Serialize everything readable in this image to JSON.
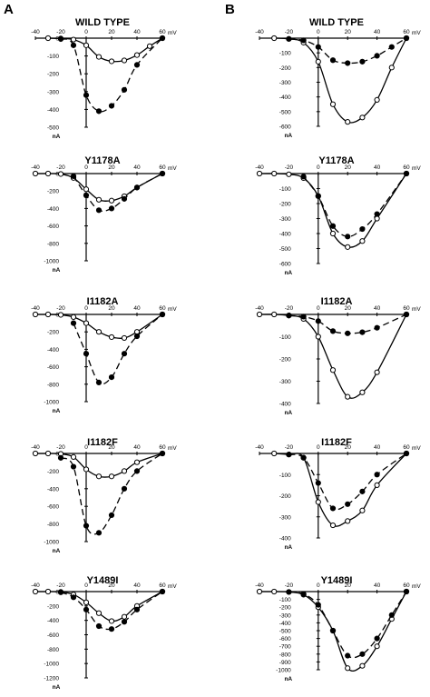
{
  "panel_labels": {
    "left": "A",
    "right": "B"
  },
  "chart_data": [
    {
      "column": "A",
      "type": "line",
      "title": "WILD TYPE",
      "xunit": "mV",
      "yunit": "nA",
      "xlim": [
        -40,
        60
      ],
      "xticks": [
        -40,
        -20,
        0,
        20,
        40,
        60
      ],
      "ylim": [
        -500,
        0
      ],
      "yticks": [
        0,
        -100,
        -200,
        -300,
        -400,
        -500
      ],
      "series": [
        {
          "marker": "open",
          "line": "solid",
          "points": [
            [
              -30,
              0
            ],
            [
              -20,
              -2
            ],
            [
              -10,
              -8
            ],
            [
              0,
              -40
            ],
            [
              10,
              -105
            ],
            [
              20,
              -130
            ],
            [
              30,
              -125
            ],
            [
              40,
              -95
            ],
            [
              50,
              -45
            ],
            [
              60,
              0
            ]
          ]
        },
        {
          "marker": "filled",
          "line": "dashed",
          "points": [
            [
              -20,
              -5
            ],
            [
              -10,
              -40
            ],
            [
              0,
              -320
            ],
            [
              10,
              -410
            ],
            [
              20,
              -380
            ],
            [
              30,
              -290
            ],
            [
              40,
              -150
            ],
            [
              60,
              0
            ]
          ]
        }
      ]
    },
    {
      "column": "A",
      "type": "line",
      "title": "Y1178A",
      "xunit": "mV",
      "yunit": "nA",
      "xlim": [
        -40,
        60
      ],
      "xticks": [
        -40,
        -20,
        0,
        20,
        40,
        60
      ],
      "ylim": [
        -1000,
        0
      ],
      "yticks": [
        0,
        -200,
        -400,
        -600,
        -800,
        -1000
      ],
      "series": [
        {
          "marker": "open",
          "line": "solid",
          "points": [
            [
              -40,
              0
            ],
            [
              -30,
              0
            ],
            [
              -20,
              -5
            ],
            [
              -10,
              -50
            ],
            [
              0,
              -180
            ],
            [
              10,
              -300
            ],
            [
              20,
              -310
            ],
            [
              30,
              -260
            ],
            [
              40,
              -160
            ],
            [
              60,
              0
            ]
          ]
        },
        {
          "marker": "filled",
          "line": "dashed",
          "points": [
            [
              -10,
              -30
            ],
            [
              0,
              -250
            ],
            [
              10,
              -420
            ],
            [
              20,
              -400
            ],
            [
              30,
              -290
            ],
            [
              40,
              -160
            ],
            [
              60,
              0
            ]
          ]
        }
      ]
    },
    {
      "column": "A",
      "type": "line",
      "title": "I1182A",
      "xunit": "mV",
      "yunit": "nA",
      "xlim": [
        -40,
        60
      ],
      "xticks": [
        -40,
        -20,
        0,
        20,
        40,
        60
      ],
      "ylim": [
        -1000,
        0
      ],
      "yticks": [
        0,
        -200,
        -400,
        -600,
        -800,
        -1000
      ],
      "series": [
        {
          "marker": "open",
          "line": "solid",
          "points": [
            [
              -40,
              0
            ],
            [
              -30,
              0
            ],
            [
              -20,
              -5
            ],
            [
              -10,
              -30
            ],
            [
              0,
              -100
            ],
            [
              10,
              -200
            ],
            [
              20,
              -260
            ],
            [
              30,
              -270
            ],
            [
              40,
              -200
            ],
            [
              60,
              0
            ]
          ]
        },
        {
          "marker": "filled",
          "line": "dashed",
          "points": [
            [
              -10,
              -100
            ],
            [
              0,
              -450
            ],
            [
              10,
              -780
            ],
            [
              20,
              -720
            ],
            [
              30,
              -450
            ],
            [
              40,
              -250
            ],
            [
              60,
              0
            ]
          ]
        }
      ]
    },
    {
      "column": "A",
      "type": "line",
      "title": "I1182F",
      "xunit": "mV",
      "yunit": "nA",
      "xlim": [
        -40,
        60
      ],
      "xticks": [
        -40,
        -20,
        0,
        20,
        40,
        60
      ],
      "ylim": [
        -1000,
        0
      ],
      "yticks": [
        0,
        -200,
        -400,
        -600,
        -800,
        -1000
      ],
      "series": [
        {
          "marker": "open",
          "line": "solid",
          "points": [
            [
              -40,
              0
            ],
            [
              -30,
              0
            ],
            [
              -20,
              -5
            ],
            [
              -10,
              -40
            ],
            [
              0,
              -180
            ],
            [
              10,
              -260
            ],
            [
              20,
              -260
            ],
            [
              30,
              -200
            ],
            [
              40,
              -100
            ],
            [
              60,
              0
            ]
          ]
        },
        {
          "marker": "filled",
          "line": "dashed",
          "points": [
            [
              -20,
              -50
            ],
            [
              -10,
              -150
            ],
            [
              0,
              -820
            ],
            [
              10,
              -900
            ],
            [
              20,
              -700
            ],
            [
              30,
              -400
            ],
            [
              40,
              -200
            ],
            [
              60,
              0
            ]
          ]
        }
      ]
    },
    {
      "column": "A",
      "type": "line",
      "title": "Y1489I",
      "xunit": "mV",
      "yunit": "nA",
      "xlim": [
        -40,
        60
      ],
      "xticks": [
        -40,
        -20,
        0,
        20,
        40,
        60
      ],
      "ylim": [
        -1200,
        0
      ],
      "yticks": [
        0,
        -200,
        -400,
        -600,
        -800,
        -1000,
        -1200
      ],
      "series": [
        {
          "marker": "open",
          "line": "solid",
          "points": [
            [
              -40,
              0
            ],
            [
              -30,
              0
            ],
            [
              -20,
              -5
            ],
            [
              -10,
              -40
            ],
            [
              0,
              -150
            ],
            [
              10,
              -300
            ],
            [
              20,
              -410
            ],
            [
              30,
              -350
            ],
            [
              40,
              -200
            ],
            [
              60,
              0
            ]
          ]
        },
        {
          "marker": "filled",
          "line": "dashed",
          "points": [
            [
              -20,
              -10
            ],
            [
              -10,
              -80
            ],
            [
              0,
              -250
            ],
            [
              10,
              -480
            ],
            [
              20,
              -520
            ],
            [
              30,
              -420
            ],
            [
              40,
              -250
            ],
            [
              60,
              0
            ]
          ]
        }
      ]
    },
    {
      "column": "B",
      "type": "line",
      "title": "WILD TYPE",
      "xunit": "mV",
      "yunit": "nA",
      "xlim": [
        -40,
        60
      ],
      "xticks": [
        -40,
        -20,
        0,
        20,
        40,
        60
      ],
      "ylim": [
        -600,
        0
      ],
      "yticks": [
        0,
        -100,
        -200,
        -300,
        -400,
        -500,
        -600
      ],
      "series": [
        {
          "marker": "open",
          "line": "solid",
          "points": [
            [
              -30,
              0
            ],
            [
              -20,
              -5
            ],
            [
              -10,
              -30
            ],
            [
              0,
              -160
            ],
            [
              10,
              -450
            ],
            [
              20,
              -570
            ],
            [
              30,
              -540
            ],
            [
              40,
              -420
            ],
            [
              50,
              -200
            ],
            [
              60,
              0
            ]
          ]
        },
        {
          "marker": "filled",
          "line": "dashed",
          "points": [
            [
              -20,
              -5
            ],
            [
              -10,
              -15
            ],
            [
              0,
              -60
            ],
            [
              10,
              -150
            ],
            [
              20,
              -170
            ],
            [
              30,
              -160
            ],
            [
              40,
              -120
            ],
            [
              50,
              -60
            ],
            [
              60,
              0
            ]
          ]
        }
      ]
    },
    {
      "column": "B",
      "type": "line",
      "title": "Y1178A",
      "xunit": "mV",
      "yunit": "nA",
      "xlim": [
        -40,
        60
      ],
      "xticks": [
        -40,
        -20,
        0,
        20,
        40,
        60
      ],
      "ylim": [
        -600,
        0
      ],
      "yticks": [
        0,
        -100,
        -200,
        -300,
        -400,
        -500,
        -600
      ],
      "series": [
        {
          "marker": "open",
          "line": "solid",
          "points": [
            [
              -40,
              0
            ],
            [
              -30,
              0
            ],
            [
              -20,
              -5
            ],
            [
              -10,
              -30
            ],
            [
              0,
              -150
            ],
            [
              10,
              -400
            ],
            [
              20,
              -490
            ],
            [
              30,
              -450
            ],
            [
              40,
              -300
            ],
            [
              60,
              0
            ]
          ]
        },
        {
          "marker": "filled",
          "line": "dashed",
          "points": [
            [
              -10,
              -20
            ],
            [
              0,
              -150
            ],
            [
              10,
              -350
            ],
            [
              20,
              -420
            ],
            [
              30,
              -370
            ],
            [
              40,
              -270
            ],
            [
              60,
              0
            ]
          ]
        }
      ]
    },
    {
      "column": "B",
      "type": "line",
      "title": "I1182A",
      "xunit": "mV",
      "yunit": "nA",
      "xlim": [
        -40,
        60
      ],
      "xticks": [
        -40,
        -20,
        0,
        20,
        40,
        60
      ],
      "ylim": [
        -400,
        0
      ],
      "yticks": [
        0,
        -100,
        -200,
        -300,
        -400
      ],
      "series": [
        {
          "marker": "open",
          "line": "solid",
          "points": [
            [
              -40,
              0
            ],
            [
              -30,
              0
            ],
            [
              -20,
              -5
            ],
            [
              -10,
              -20
            ],
            [
              0,
              -100
            ],
            [
              10,
              -250
            ],
            [
              20,
              -370
            ],
            [
              30,
              -350
            ],
            [
              40,
              -260
            ],
            [
              60,
              0
            ]
          ]
        },
        {
          "marker": "filled",
          "line": "dashed",
          "points": [
            [
              -20,
              -5
            ],
            [
              -10,
              -10
            ],
            [
              0,
              -30
            ],
            [
              10,
              -75
            ],
            [
              20,
              -85
            ],
            [
              30,
              -80
            ],
            [
              40,
              -60
            ],
            [
              60,
              0
            ]
          ]
        }
      ]
    },
    {
      "column": "B",
      "type": "line",
      "title": "I1182F",
      "xunit": "mV",
      "yunit": "nA",
      "xlim": [
        -40,
        60
      ],
      "xticks": [
        -40,
        -20,
        0,
        20,
        40,
        60
      ],
      "ylim": [
        -400,
        0
      ],
      "yticks": [
        0,
        -100,
        -200,
        -300,
        -400
      ],
      "series": [
        {
          "marker": "open",
          "line": "solid",
          "points": [
            [
              -30,
              0
            ],
            [
              -20,
              -5
            ],
            [
              -10,
              -20
            ],
            [
              0,
              -230
            ],
            [
              10,
              -340
            ],
            [
              20,
              -320
            ],
            [
              30,
              -270
            ],
            [
              40,
              -150
            ],
            [
              60,
              0
            ]
          ]
        },
        {
          "marker": "filled",
          "line": "dashed",
          "points": [
            [
              -20,
              -5
            ],
            [
              -10,
              -20
            ],
            [
              0,
              -140
            ],
            [
              10,
              -260
            ],
            [
              20,
              -240
            ],
            [
              30,
              -180
            ],
            [
              40,
              -100
            ],
            [
              60,
              0
            ]
          ]
        }
      ]
    },
    {
      "column": "B",
      "type": "line",
      "title": "Y1489I",
      "xunit": "mV",
      "yunit": "nA",
      "xlim": [
        -40,
        60
      ],
      "xticks": [
        -40,
        -20,
        0,
        20,
        40,
        60
      ],
      "ylim": [
        -1000,
        0
      ],
      "yticks": [
        0,
        -100,
        -200,
        -300,
        -400,
        -500,
        -600,
        -700,
        -800,
        -900,
        -1000
      ],
      "series": [
        {
          "marker": "open",
          "line": "solid",
          "points": [
            [
              -40,
              0
            ],
            [
              -30,
              0
            ],
            [
              -20,
              -5
            ],
            [
              -10,
              -40
            ],
            [
              0,
              -200
            ],
            [
              10,
              -500
            ],
            [
              20,
              -980
            ],
            [
              30,
              -950
            ],
            [
              40,
              -700
            ],
            [
              50,
              -350
            ],
            [
              60,
              0
            ]
          ]
        },
        {
          "marker": "filled",
          "line": "dashed",
          "points": [
            [
              -20,
              -5
            ],
            [
              -10,
              -30
            ],
            [
              0,
              -170
            ],
            [
              10,
              -500
            ],
            [
              20,
              -820
            ],
            [
              30,
              -800
            ],
            [
              40,
              -600
            ],
            [
              50,
              -300
            ],
            [
              60,
              0
            ]
          ]
        }
      ]
    }
  ]
}
